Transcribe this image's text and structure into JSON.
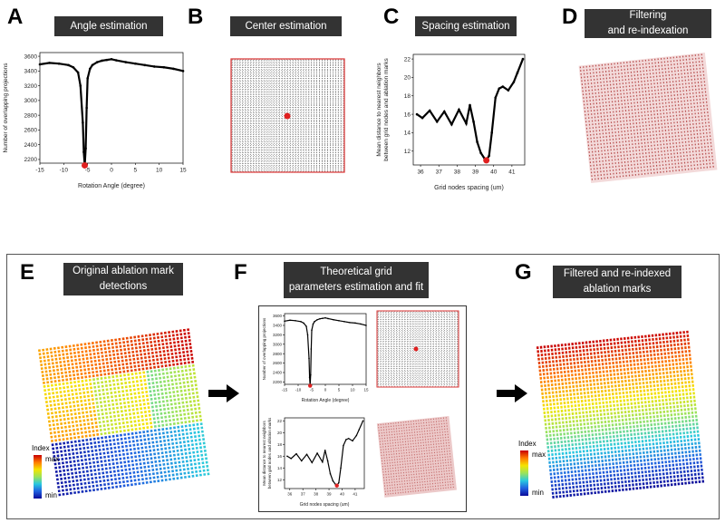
{
  "panels": {
    "A": {
      "letter": "A",
      "title": "Angle estimation"
    },
    "B": {
      "letter": "B",
      "title": "Center estimation"
    },
    "C": {
      "letter": "C",
      "title": "Spacing estimation"
    },
    "D": {
      "letter": "D",
      "title": "Filtering\nand re-indexation"
    },
    "E": {
      "letter": "E",
      "title": "Original ablation mark\ndetections",
      "colorbar": {
        "title": "Index",
        "max": "max",
        "min": "min"
      }
    },
    "F": {
      "letter": "F",
      "title": "Theoretical grid\nparameters estimation and fit"
    },
    "G": {
      "letter": "G",
      "title": "Filtered and re-indexed\nablation marks",
      "colorbar": {
        "title": "Index",
        "max": "max",
        "min": "min"
      }
    }
  },
  "chart_data": [
    {
      "id": "angle",
      "type": "line",
      "xlabel": "Rotation Angle (degree)",
      "ylabel": "Number of overlapping projections",
      "xlim": [
        -15,
        15
      ],
      "ylim": [
        2150,
        3650
      ],
      "xticks": [
        "-15",
        "-10",
        "-5",
        "0",
        "5",
        "10",
        "15"
      ],
      "yticks": [
        "2200",
        "2400",
        "2600",
        "2800",
        "3000",
        "3200",
        "3400",
        "3600"
      ],
      "x": [
        -15,
        -13,
        -11,
        -9,
        -8,
        -7,
        -6.5,
        -6,
        -5.8,
        -5.6,
        -5.4,
        -5.2,
        -5,
        -4.5,
        -4,
        -3,
        -2,
        -1,
        0,
        1,
        3,
        5,
        7,
        9,
        11,
        13,
        15
      ],
      "y": [
        3490,
        3510,
        3500,
        3480,
        3450,
        3380,
        3200,
        2700,
        2300,
        2120,
        2350,
        2900,
        3300,
        3430,
        3480,
        3520,
        3540,
        3550,
        3560,
        3545,
        3520,
        3500,
        3480,
        3460,
        3450,
        3430,
        3400
      ],
      "minimum": {
        "x": -5.6,
        "y": 2120
      }
    },
    {
      "id": "spacing",
      "type": "line",
      "xlabel": "Grid nodes spacing (um)",
      "ylabel": "Mean distance to nearest neighbors\nbetween grid nodes and ablation marks",
      "xlim": [
        35.6,
        41.7
      ],
      "ylim": [
        10.5,
        22.5
      ],
      "xticks": [
        "36",
        "37",
        "38",
        "39",
        "40",
        "41"
      ],
      "yticks": [
        "12",
        "14",
        "16",
        "18",
        "20",
        "22"
      ],
      "x": [
        35.8,
        36.1,
        36.5,
        36.9,
        37.3,
        37.7,
        38.1,
        38.5,
        38.7,
        38.9,
        39.1,
        39.3,
        39.5,
        39.6,
        39.75,
        39.9,
        40.1,
        40.3,
        40.5,
        40.8,
        41.1,
        41.3,
        41.6
      ],
      "y": [
        16.0,
        15.6,
        16.4,
        15.2,
        16.3,
        14.9,
        16.5,
        15.0,
        17.0,
        15.2,
        13.0,
        11.8,
        11.2,
        11.0,
        11.5,
        14.0,
        17.8,
        18.8,
        19.0,
        18.6,
        19.5,
        20.5,
        22.0
      ],
      "minimum": {
        "x": 39.6,
        "y": 11.0
      }
    }
  ]
}
